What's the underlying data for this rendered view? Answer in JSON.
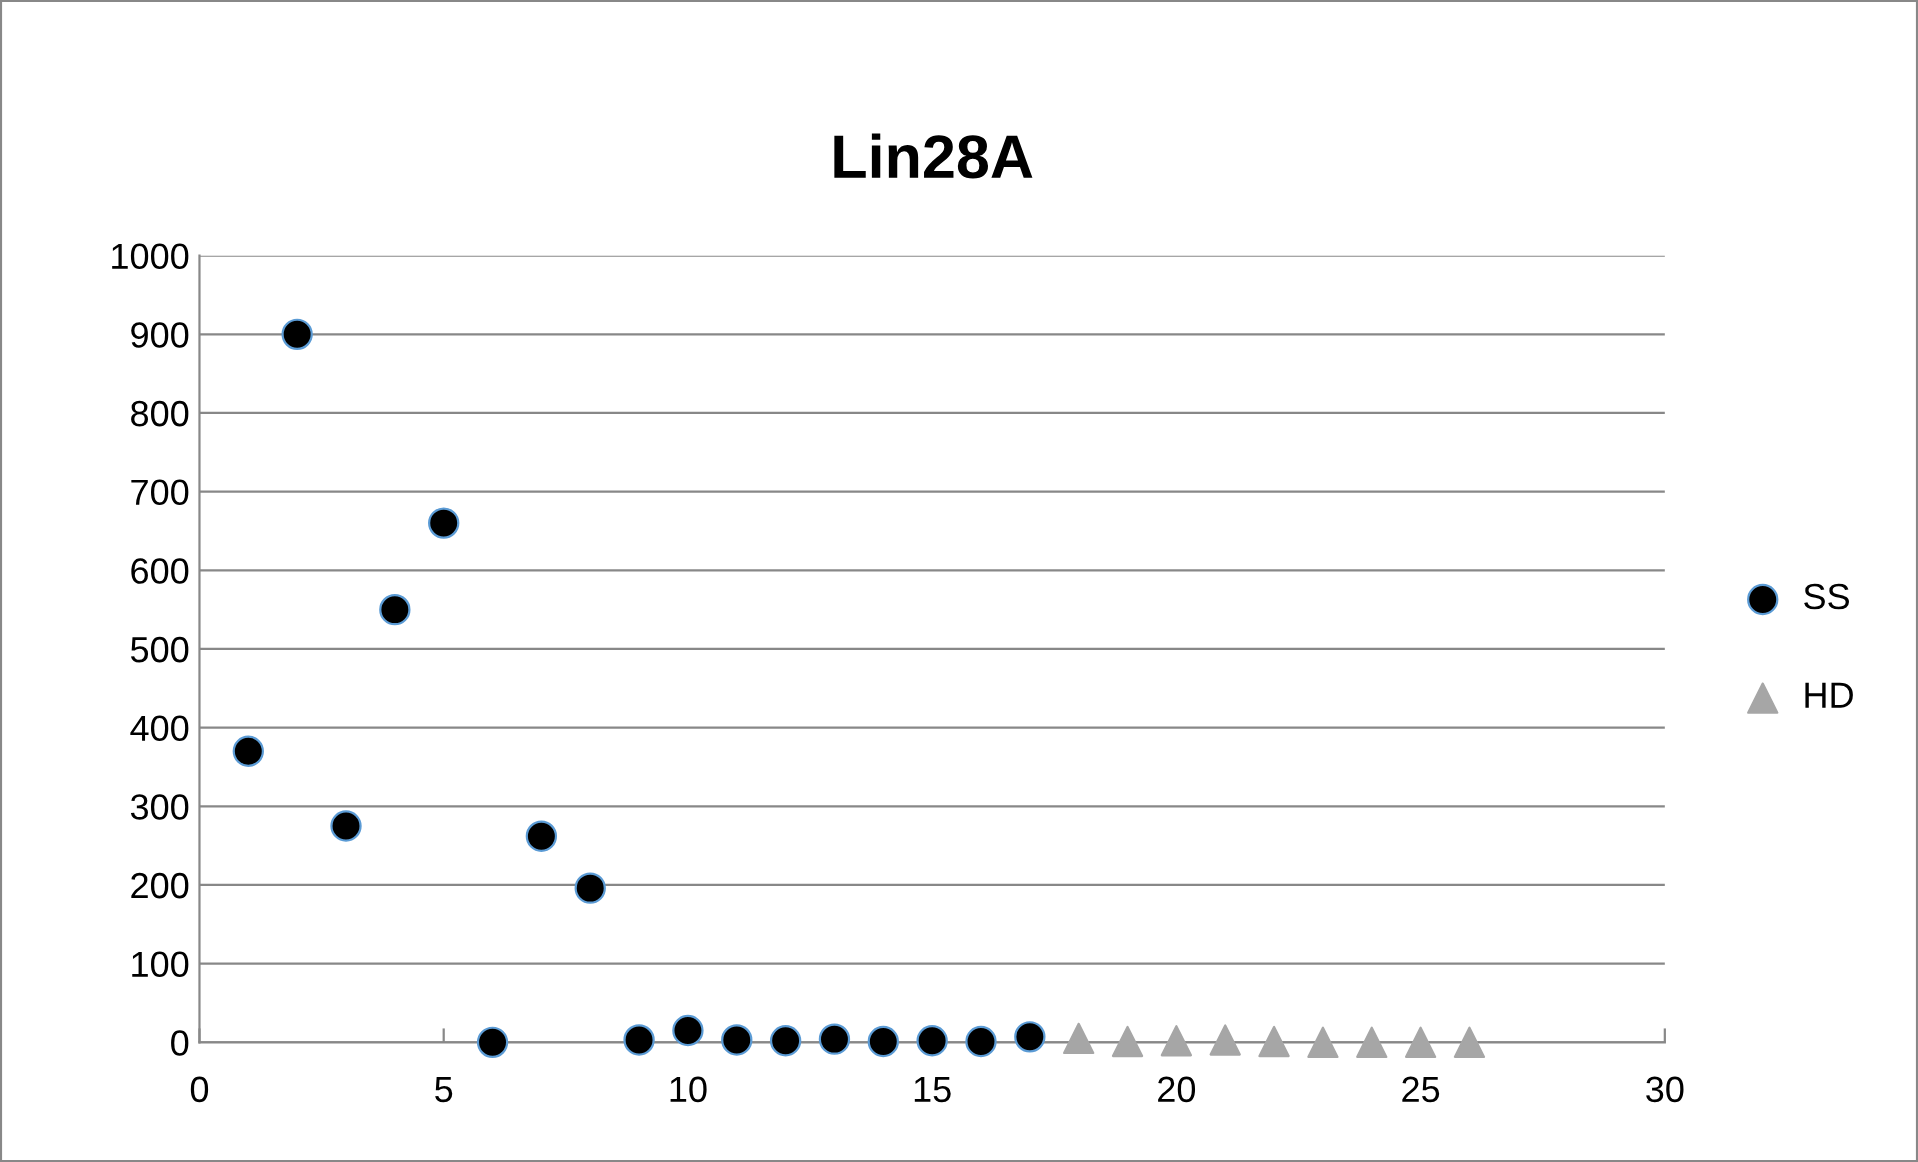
{
  "chart_data": {
    "type": "scatter",
    "title": "Lin28A",
    "xlim": [
      0,
      30
    ],
    "xticks": [
      0,
      5,
      10,
      15,
      20,
      25,
      30
    ],
    "ylim": [
      0,
      1000
    ],
    "yticks": [
      0,
      100,
      200,
      300,
      400,
      500,
      600,
      700,
      800,
      900,
      1000
    ],
    "grid": "y",
    "legend": "right",
    "series": [
      {
        "name": "SS",
        "color": "#000000",
        "marker": "circle",
        "x": [
          1,
          2,
          3,
          4,
          5,
          6,
          7,
          8,
          9,
          10,
          11,
          12,
          13,
          14,
          15,
          16,
          17
        ],
        "values": [
          370,
          900,
          275,
          550,
          660,
          0,
          262,
          196,
          3,
          15,
          3,
          2,
          4,
          1,
          2,
          1,
          7
        ]
      },
      {
        "name": "HD",
        "color": "#a6a6a6",
        "marker": "triangle",
        "x": [
          18,
          19,
          20,
          21,
          22,
          23,
          24,
          25,
          26
        ],
        "values": [
          5,
          1,
          2,
          3,
          1,
          0,
          0,
          0,
          0
        ]
      }
    ]
  }
}
